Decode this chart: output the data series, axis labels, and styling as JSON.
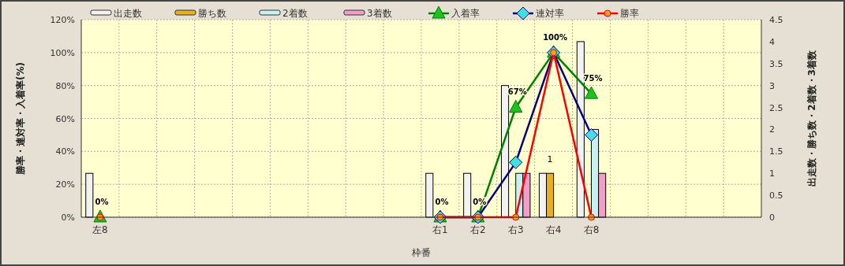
{
  "chart_data": {
    "type": "bar",
    "xlabel": "枠番",
    "ylabel": "勝率・連対率・入着率(%)",
    "y2label": "出走数・勝ち数・2着数・3着数",
    "categories": [
      "左8",
      null,
      null,
      null,
      null,
      null,
      null,
      null,
      null,
      "右1",
      "右2",
      "右3",
      "右4",
      "右8",
      null,
      null,
      null,
      null
    ],
    "ylim": [
      0,
      120
    ],
    "yticks": [
      {
        "value": 0,
        "label": "0%"
      },
      {
        "value": 20,
        "label": "20%"
      },
      {
        "value": 40,
        "label": "40%"
      },
      {
        "value": 60,
        "label": "60%"
      },
      {
        "value": 80,
        "label": "80%"
      },
      {
        "value": 100,
        "label": "100%"
      },
      {
        "value": 120,
        "label": "120%"
      }
    ],
    "y2lim": [
      0,
      4.5
    ],
    "y2ticks": [
      0,
      0.5,
      1,
      1.5,
      2,
      2.5,
      3,
      3.5,
      4,
      4.5
    ],
    "grid": true,
    "legend": "top",
    "series": [
      {
        "name": "出走数",
        "type": "bar",
        "axis": "y2",
        "color": "#f2f2f2",
        "values": [
          1,
          null,
          null,
          null,
          null,
          null,
          null,
          null,
          null,
          1,
          1,
          3,
          1,
          4,
          null,
          null,
          null,
          null
        ]
      },
      {
        "name": "勝ち数",
        "type": "bar",
        "axis": "y2",
        "color": "#e8b020",
        "values": [
          0,
          null,
          null,
          null,
          null,
          null,
          null,
          null,
          null,
          0,
          0,
          0,
          1,
          0,
          null,
          null,
          null,
          null
        ],
        "value_labels": [
          null,
          null,
          null,
          null,
          null,
          null,
          null,
          null,
          null,
          null,
          null,
          null,
          "1",
          null,
          null,
          null,
          null,
          null
        ]
      },
      {
        "name": "2着数",
        "type": "bar",
        "axis": "y2",
        "color": "#c8f0f0",
        "values": [
          0,
          null,
          null,
          null,
          null,
          null,
          null,
          null,
          null,
          0,
          0,
          1,
          0,
          2,
          null,
          null,
          null,
          null
        ]
      },
      {
        "name": "3着数",
        "type": "bar",
        "axis": "y2",
        "color": "#f0a0c8",
        "values": [
          0,
          null,
          null,
          null,
          null,
          null,
          null,
          null,
          null,
          0,
          0,
          1,
          0,
          1,
          null,
          null,
          null,
          null
        ]
      },
      {
        "name": "入着率",
        "type": "line",
        "marker": "triangle",
        "color": "#008000",
        "values": [
          0,
          null,
          null,
          null,
          null,
          null,
          null,
          null,
          null,
          0,
          0,
          66.7,
          100,
          75,
          null,
          null,
          null,
          null
        ],
        "value_labels": [
          "0%",
          null,
          null,
          null,
          null,
          null,
          null,
          null,
          null,
          "0%",
          "0%",
          "67%",
          "100%",
          "75%",
          null,
          null,
          null,
          null
        ]
      },
      {
        "name": "連対率",
        "type": "line",
        "marker": "diamond",
        "color": "#000080",
        "values": [
          null,
          null,
          null,
          null,
          null,
          null,
          null,
          null,
          null,
          0,
          0,
          33.3,
          100,
          50,
          null,
          null,
          null,
          null
        ]
      },
      {
        "name": "勝率",
        "type": "line",
        "marker": "circle",
        "color": "#ff0000",
        "values": [
          0,
          null,
          null,
          null,
          null,
          null,
          null,
          null,
          null,
          0,
          0,
          0,
          100,
          0,
          null,
          null,
          null,
          null
        ]
      }
    ]
  }
}
